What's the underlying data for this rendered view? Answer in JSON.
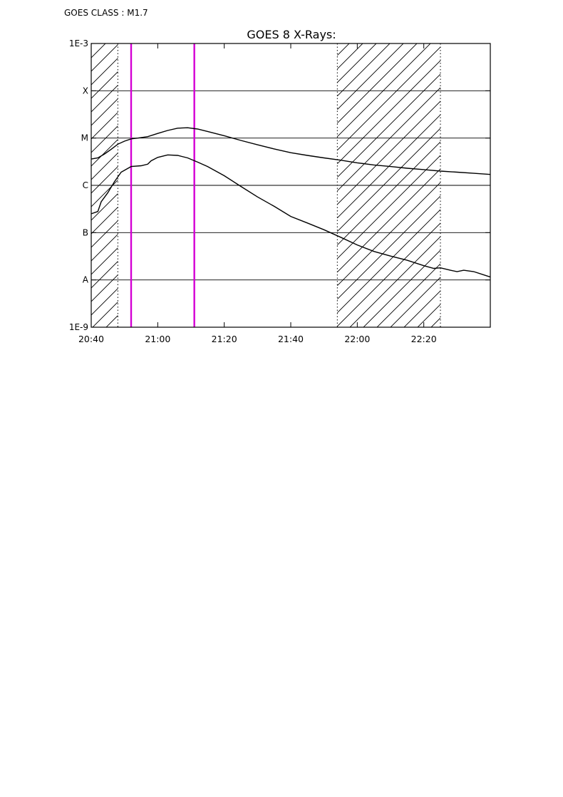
{
  "header": {
    "class_label": "GOES CLASS : M1.7"
  },
  "chart_data": {
    "type": "line",
    "title": "GOES 8 X-Rays:",
    "xlabel": "",
    "ylabel": "",
    "x_axis": {
      "range": [
        "20:40",
        "22:40"
      ],
      "ticks": [
        {
          "t": "20:40",
          "label": "20:40"
        },
        {
          "t": "21:00",
          "label": "21:00"
        },
        {
          "t": "21:20",
          "label": "21:20"
        },
        {
          "t": "21:40",
          "label": "21:40"
        },
        {
          "t": "22:00",
          "label": "22:00"
        },
        {
          "t": "22:20",
          "label": "22:20"
        }
      ]
    },
    "y_axis": {
      "scale": "log",
      "range": [
        1e-09,
        0.001
      ],
      "ticks": [
        {
          "v": 1e-09,
          "label": "1E-9"
        },
        {
          "v": 1e-08,
          "label": "A"
        },
        {
          "v": 1e-07,
          "label": "B"
        },
        {
          "v": 1e-06,
          "label": "C"
        },
        {
          "v": 1e-05,
          "label": "M"
        },
        {
          "v": 0.0001,
          "label": "X"
        },
        {
          "v": 0.001,
          "label": "1E-3"
        }
      ],
      "grid": true
    },
    "series": [
      {
        "points": [
          [
            "20:40",
            3.6e-06
          ],
          [
            "20:42",
            3.8e-06
          ],
          [
            "20:44",
            4.6e-06
          ],
          [
            "20:46",
            5.8e-06
          ],
          [
            "20:48",
            7.4e-06
          ],
          [
            "20:50",
            8.6e-06
          ],
          [
            "20:52",
            9.6e-06
          ],
          [
            "20:54",
            1e-05
          ],
          [
            "20:57",
            1.07e-05
          ],
          [
            "21:00",
            1.25e-05
          ],
          [
            "21:03",
            1.45e-05
          ],
          [
            "21:06",
            1.62e-05
          ],
          [
            "21:09",
            1.65e-05
          ],
          [
            "21:12",
            1.55e-05
          ],
          [
            "21:15",
            1.38e-05
          ],
          [
            "21:20",
            1.12e-05
          ],
          [
            "21:25",
            8.9e-06
          ],
          [
            "21:30",
            7.2e-06
          ],
          [
            "21:35",
            5.9e-06
          ],
          [
            "21:40",
            4.9e-06
          ],
          [
            "21:45",
            4.3e-06
          ],
          [
            "21:50",
            3.8e-06
          ],
          [
            "21:55",
            3.4e-06
          ],
          [
            "22:00",
            3e-06
          ],
          [
            "22:05",
            2.7e-06
          ],
          [
            "22:10",
            2.5e-06
          ],
          [
            "22:15",
            2.3e-06
          ],
          [
            "22:20",
            2.15e-06
          ],
          [
            "22:25",
            2e-06
          ],
          [
            "22:30",
            1.9e-06
          ],
          [
            "22:35",
            1.8e-06
          ],
          [
            "22:40",
            1.7e-06
          ]
        ]
      },
      {
        "points": [
          [
            "20:40",
            2.5e-07
          ],
          [
            "20:42",
            2.8e-07
          ],
          [
            "20:43",
            4.5e-07
          ],
          [
            "20:45",
            7e-07
          ],
          [
            "20:47",
            1.2e-06
          ],
          [
            "20:49",
            1.9e-06
          ],
          [
            "20:52",
            2.5e-06
          ],
          [
            "20:55",
            2.6e-06
          ],
          [
            "20:57",
            2.8e-06
          ],
          [
            "20:58",
            3.3e-06
          ],
          [
            "21:00",
            3.9e-06
          ],
          [
            "21:03",
            4.4e-06
          ],
          [
            "21:06",
            4.3e-06
          ],
          [
            "21:09",
            3.8e-06
          ],
          [
            "21:12",
            3.1e-06
          ],
          [
            "21:15",
            2.5e-06
          ],
          [
            "21:20",
            1.6e-06
          ],
          [
            "21:25",
            9.5e-07
          ],
          [
            "21:30",
            5.7e-07
          ],
          [
            "21:35",
            3.6e-07
          ],
          [
            "21:40",
            2.2e-07
          ],
          [
            "21:45",
            1.6e-07
          ],
          [
            "21:50",
            1.15e-07
          ],
          [
            "21:55",
            8e-08
          ],
          [
            "22:00",
            5.5e-08
          ],
          [
            "22:05",
            4e-08
          ],
          [
            "22:10",
            3.2e-08
          ],
          [
            "22:15",
            2.6e-08
          ],
          [
            "22:20",
            2e-08
          ],
          [
            "22:23",
            1.75e-08
          ],
          [
            "22:25",
            1.8e-08
          ],
          [
            "22:28",
            1.6e-08
          ],
          [
            "22:30",
            1.5e-08
          ],
          [
            "22:32",
            1.6e-08
          ],
          [
            "22:35",
            1.5e-08
          ],
          [
            "22:40",
            1.15e-08
          ]
        ]
      }
    ],
    "markers": [
      "20:52",
      "21:11"
    ],
    "marker_color": "#d400d4",
    "hatched_regions": [
      {
        "start": "20:40",
        "end": "20:48"
      },
      {
        "start": "21:54",
        "end": "22:25"
      }
    ]
  }
}
